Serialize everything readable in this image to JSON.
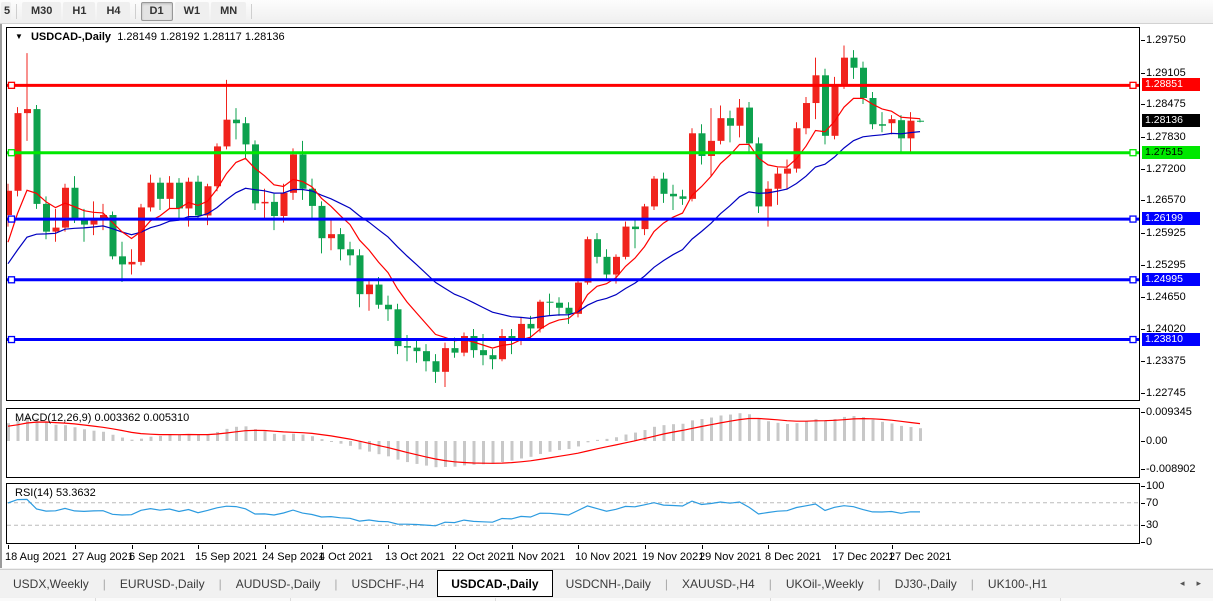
{
  "toolbar": {
    "partial_label": "5",
    "timeframes": [
      "M30",
      "H1",
      "H4",
      "D1",
      "W1",
      "MN"
    ],
    "active_timeframe": "D1"
  },
  "chart_window": {
    "title": "USDCAD-,Daily",
    "ohlc": "1.28149 1.28192 1.28117 1.28136",
    "price_axis_ticks": [
      "1.29750",
      "1.29105",
      "1.28475",
      "1.27830",
      "1.27200",
      "1.26570",
      "1.25925",
      "1.25295",
      "1.24650",
      "1.24020",
      "1.23375",
      "1.22745"
    ],
    "current_price_tag": {
      "text": "1.28136",
      "bg": "#000000",
      "fg": "#ffffff"
    },
    "level_lines": [
      {
        "price": 1.28851,
        "text": "1.28851",
        "color": "#ff0000",
        "tag_fg": "#ffffff"
      },
      {
        "price": 1.27515,
        "text": "1.27515",
        "color": "#00e800",
        "tag_fg": "#000000"
      },
      {
        "price": 1.26199,
        "text": "1.26199",
        "color": "#0000ff",
        "tag_fg": "#ffffff"
      },
      {
        "price": 1.24995,
        "text": "1.24995",
        "color": "#0000ff",
        "tag_fg": "#ffffff"
      },
      {
        "price": 1.2381,
        "text": "1.23810",
        "color": "#0000ff",
        "tag_fg": "#ffffff"
      }
    ]
  },
  "macd_panel": {
    "label": "MACD(12,26,9) 0.003362 0.005310",
    "axis_ticks": [
      "0.009345",
      "0.00",
      "-0.008902"
    ],
    "axis_values": [
      0.009345,
      0.0,
      -0.008902
    ]
  },
  "rsi_panel": {
    "label": "RSI(14) 53.3632",
    "axis_ticks": [
      "100",
      "70",
      "30",
      "0"
    ],
    "axis_values": [
      100,
      70,
      30,
      0
    ],
    "dashed_levels": [
      70,
      30
    ]
  },
  "tab_bar": {
    "tabs": [
      "USDX,Weekly",
      "EURUSD-,Daily",
      "AUDUSD-,Daily",
      "USDCHF-,H4",
      "USDCAD-,Daily",
      "USDCNH-,Daily",
      "XAUUSD-,H4",
      "UKOil-,Weekly",
      "DJ30-,Daily",
      "UK100-,H1"
    ],
    "active": "USDCAD-,Daily",
    "scroll_left_icon": "◂",
    "scroll_right_icon": "▸"
  },
  "chart_data": {
    "type": "candlestick",
    "symbol": "USDCAD-",
    "timeframe": "Daily",
    "title": "USDCAD-,Daily",
    "last_ohlc": {
      "open": 1.28149,
      "high": 1.28192,
      "low": 1.28117,
      "close": 1.28136
    },
    "price_range": [
      1.2256,
      1.299
    ],
    "grid": false,
    "colors": {
      "up": "#f0231d",
      "down": "#0da14e",
      "ma_fast": "#ff0000",
      "ma_slow": "#0000c0",
      "macd_hist": "#c8c8c8",
      "macd_signal": "#ff0000",
      "rsi": "#2c9be0",
      "rsi_dash": "#bbbbbb"
    },
    "indicators": {
      "ma_fast": {
        "type": "ema",
        "period": 8,
        "seed": 1.2545
      },
      "ma_slow": {
        "type": "ema",
        "period": 21,
        "seed": 1.2517
      },
      "macd": {
        "fast": 12,
        "slow": 26,
        "signal": 9,
        "seed_fast": 1.26,
        "seed_slow": 1.2545,
        "seed_signal": 0.0045
      },
      "rsi": {
        "period": 14,
        "seed_gain": 0.0032,
        "seed_loss": 0.0014
      }
    },
    "x_axis": {
      "labels": [
        "18 Aug 2021",
        "27 Aug 2021",
        "6 Sep 2021",
        "15 Sep 2021",
        "24 Sep 2021",
        "4 Oct 2021",
        "13 Oct 2021",
        "22 Oct 2021",
        "1 Nov 2021",
        "10 Nov 2021",
        "19 Nov 2021",
        "29 Nov 2021",
        "8 Dec 2021",
        "17 Dec 2021",
        "27 Dec 2021"
      ],
      "indices": [
        0,
        7,
        13,
        20,
        27,
        33,
        40,
        47,
        53,
        60,
        67,
        73,
        80,
        87,
        93
      ]
    },
    "candles": [
      [
        "18 Aug 2021",
        1.2628,
        1.269,
        1.2605,
        1.2676
      ],
      [
        "19 Aug 2021",
        1.2676,
        1.2842,
        1.2665,
        1.283
      ],
      [
        "20 Aug 2021",
        1.283,
        1.2949,
        1.2775,
        1.2838
      ],
      [
        "23 Aug 2021",
        1.2838,
        1.2846,
        1.264,
        1.265
      ],
      [
        "24 Aug 2021",
        1.265,
        1.2665,
        1.258,
        1.2595
      ],
      [
        "25 Aug 2021",
        1.2595,
        1.264,
        1.2575,
        1.2603
      ],
      [
        "26 Aug 2021",
        1.2603,
        1.269,
        1.2595,
        1.2682
      ],
      [
        "27 Aug 2021",
        1.2682,
        1.2705,
        1.2612,
        1.262
      ],
      [
        "30 Aug 2021",
        1.262,
        1.264,
        1.2575,
        1.2609
      ],
      [
        "31 Aug 2021",
        1.2609,
        1.2655,
        1.2588,
        1.2622
      ],
      [
        "1 Sep 2021",
        1.2622,
        1.265,
        1.2598,
        1.2628
      ],
      [
        "2 Sep 2021",
        1.2628,
        1.2635,
        1.254,
        1.2546
      ],
      [
        "3 Sep 2021",
        1.2546,
        1.2575,
        1.2495,
        1.253
      ],
      [
        "6 Sep 2021",
        1.253,
        1.256,
        1.251,
        1.2535
      ],
      [
        "7 Sep 2021",
        1.2535,
        1.265,
        1.2528,
        1.2643
      ],
      [
        "8 Sep 2021",
        1.2643,
        1.2708,
        1.2635,
        1.2692
      ],
      [
        "9 Sep 2021",
        1.2692,
        1.2702,
        1.2638,
        1.266
      ],
      [
        "10 Sep 2021",
        1.266,
        1.2705,
        1.264,
        1.2692
      ],
      [
        "13 Sep 2021",
        1.2692,
        1.2701,
        1.2618,
        1.2641
      ],
      [
        "14 Sep 2021",
        1.2641,
        1.2702,
        1.2605,
        1.2694
      ],
      [
        "15 Sep 2021",
        1.2694,
        1.2706,
        1.2618,
        1.2627
      ],
      [
        "16 Sep 2021",
        1.2627,
        1.269,
        1.2608,
        1.2685
      ],
      [
        "17 Sep 2021",
        1.2685,
        1.277,
        1.2675,
        1.2764
      ],
      [
        "20 Sep 2021",
        1.2764,
        1.2896,
        1.2758,
        1.2817
      ],
      [
        "21 Sep 2021",
        1.2817,
        1.284,
        1.2778,
        1.281
      ],
      [
        "22 Sep 2021",
        1.281,
        1.2822,
        1.2738,
        1.2768
      ],
      [
        "23 Sep 2021",
        1.2768,
        1.2776,
        1.2638,
        1.2651
      ],
      [
        "24 Sep 2021",
        1.2651,
        1.268,
        1.2618,
        1.2654
      ],
      [
        "27 Sep 2021",
        1.2654,
        1.267,
        1.2598,
        1.2626
      ],
      [
        "28 Sep 2021",
        1.2626,
        1.269,
        1.2613,
        1.2672
      ],
      [
        "29 Sep 2021",
        1.2672,
        1.276,
        1.2658,
        1.2748
      ],
      [
        "30 Sep 2021",
        1.2748,
        1.2775,
        1.2658,
        1.268
      ],
      [
        "1 Oct 2021",
        1.268,
        1.27,
        1.2618,
        1.2646
      ],
      [
        "4 Oct 2021",
        1.2646,
        1.2655,
        1.2552,
        1.2582
      ],
      [
        "5 Oct 2021",
        1.2582,
        1.262,
        1.2558,
        1.259
      ],
      [
        "6 Oct 2021",
        1.259,
        1.2602,
        1.2538,
        1.256
      ],
      [
        "7 Oct 2021",
        1.256,
        1.2575,
        1.2528,
        1.2548
      ],
      [
        "8 Oct 2021",
        1.2548,
        1.256,
        1.2445,
        1.2471
      ],
      [
        "11 Oct 2021",
        1.2471,
        1.25,
        1.2438,
        1.249
      ],
      [
        "12 Oct 2021",
        1.249,
        1.2505,
        1.2442,
        1.245
      ],
      [
        "13 Oct 2021",
        1.245,
        1.2468,
        1.2418,
        1.2441
      ],
      [
        "14 Oct 2021",
        1.2441,
        1.2452,
        1.2352,
        1.2368
      ],
      [
        "15 Oct 2021",
        1.2368,
        1.239,
        1.2338,
        1.2365
      ],
      [
        "18 Oct 2021",
        1.2365,
        1.238,
        1.2335,
        1.2358
      ],
      [
        "19 Oct 2021",
        1.2358,
        1.2372,
        1.2318,
        1.2338
      ],
      [
        "20 Oct 2021",
        1.2338,
        1.2352,
        1.2295,
        1.2317
      ],
      [
        "21 Oct 2021",
        1.2317,
        1.2375,
        1.2287,
        1.2364
      ],
      [
        "22 Oct 2021",
        1.2364,
        1.2385,
        1.2345,
        1.2355
      ],
      [
        "25 Oct 2021",
        1.2355,
        1.2395,
        1.2348,
        1.2388
      ],
      [
        "26 Oct 2021",
        1.2388,
        1.2402,
        1.2345,
        1.236
      ],
      [
        "27 Oct 2021",
        1.236,
        1.2392,
        1.233,
        1.235
      ],
      [
        "28 Oct 2021",
        1.235,
        1.2362,
        1.2322,
        1.2342
      ],
      [
        "29 Oct 2021",
        1.2342,
        1.2402,
        1.2338,
        1.2388
      ],
      [
        "1 Nov 2021",
        1.2388,
        1.2402,
        1.2352,
        1.238
      ],
      [
        "2 Nov 2021",
        1.238,
        1.2425,
        1.237,
        1.2412
      ],
      [
        "3 Nov 2021",
        1.2412,
        1.2428,
        1.2382,
        1.2403
      ],
      [
        "4 Nov 2021",
        1.2403,
        1.246,
        1.2395,
        1.2456
      ],
      [
        "5 Nov 2021",
        1.2456,
        1.2472,
        1.2428,
        1.2454
      ],
      [
        "8 Nov 2021",
        1.2454,
        1.2465,
        1.2428,
        1.2444
      ],
      [
        "9 Nov 2021",
        1.2444,
        1.2455,
        1.2412,
        1.2432
      ],
      [
        "10 Nov 2021",
        1.2432,
        1.25,
        1.2425,
        1.2494
      ],
      [
        "11 Nov 2021",
        1.2494,
        1.2585,
        1.249,
        1.258
      ],
      [
        "12 Nov 2021",
        1.258,
        1.2592,
        1.2532,
        1.2545
      ],
      [
        "15 Nov 2021",
        1.2545,
        1.256,
        1.2502,
        1.251
      ],
      [
        "16 Nov 2021",
        1.251,
        1.255,
        1.2492,
        1.2545
      ],
      [
        "17 Nov 2021",
        1.2545,
        1.2615,
        1.254,
        1.2605
      ],
      [
        "18 Nov 2021",
        1.2605,
        1.2622,
        1.2562,
        1.26
      ],
      [
        "19 Nov 2021",
        1.26,
        1.265,
        1.2588,
        1.2645
      ],
      [
        "22 Nov 2021",
        1.2645,
        1.2705,
        1.2638,
        1.27
      ],
      [
        "23 Nov 2021",
        1.27,
        1.2712,
        1.2652,
        1.267
      ],
      [
        "24 Nov 2021",
        1.267,
        1.2688,
        1.2638,
        1.2665
      ],
      [
        "25 Nov 2021",
        1.2665,
        1.2678,
        1.2648,
        1.266
      ],
      [
        "26 Nov 2021",
        1.266,
        1.28,
        1.2655,
        1.279
      ],
      [
        "29 Nov 2021",
        1.279,
        1.2808,
        1.2728,
        1.2745
      ],
      [
        "30 Nov 2021",
        1.2745,
        1.284,
        1.2705,
        1.2775
      ],
      [
        "1 Dec 2021",
        1.2775,
        1.2845,
        1.2768,
        1.282
      ],
      [
        "2 Dec 2021",
        1.282,
        1.2835,
        1.2772,
        1.2805
      ],
      [
        "3 Dec 2021",
        1.2805,
        1.2858,
        1.2782,
        1.2841
      ],
      [
        "6 Dec 2021",
        1.2841,
        1.2852,
        1.2752,
        1.277
      ],
      [
        "7 Dec 2021",
        1.277,
        1.2782,
        1.2632,
        1.2645
      ],
      [
        "8 Dec 2021",
        1.2645,
        1.2695,
        1.2605,
        1.268
      ],
      [
        "9 Dec 2021",
        1.268,
        1.2722,
        1.2648,
        1.271
      ],
      [
        "10 Dec 2021",
        1.271,
        1.2738,
        1.2678,
        1.272
      ],
      [
        "13 Dec 2021",
        1.272,
        1.2812,
        1.2712,
        1.28
      ],
      [
        "14 Dec 2021",
        1.28,
        1.2862,
        1.2788,
        1.285
      ],
      [
        "15 Dec 2021",
        1.285,
        1.294,
        1.2818,
        1.2905
      ],
      [
        "16 Dec 2021",
        1.2905,
        1.2918,
        1.2768,
        1.2785
      ],
      [
        "17 Dec 2021",
        1.2785,
        1.2902,
        1.2778,
        1.2885
      ],
      [
        "20 Dec 2021",
        1.2885,
        1.2964,
        1.2878,
        1.294
      ],
      [
        "21 Dec 2021",
        1.294,
        1.2955,
        1.2898,
        1.292
      ],
      [
        "22 Dec 2021",
        1.292,
        1.2932,
        1.2848,
        1.286
      ],
      [
        "23 Dec 2021",
        1.286,
        1.2872,
        1.2798,
        1.2808
      ],
      [
        "24 Dec 2021",
        1.2808,
        1.2832,
        1.2792,
        1.2805
      ],
      [
        "27 Dec 2021",
        1.281,
        1.2826,
        1.2788,
        1.2818
      ],
      [
        "28 Dec 2021",
        1.2816,
        1.2826,
        1.2752,
        1.278
      ],
      [
        "29 Dec 2021",
        1.278,
        1.2832,
        1.2752,
        1.2815
      ],
      [
        "30 Dec 2021",
        1.28149,
        1.28192,
        1.28117,
        1.28136
      ]
    ]
  }
}
